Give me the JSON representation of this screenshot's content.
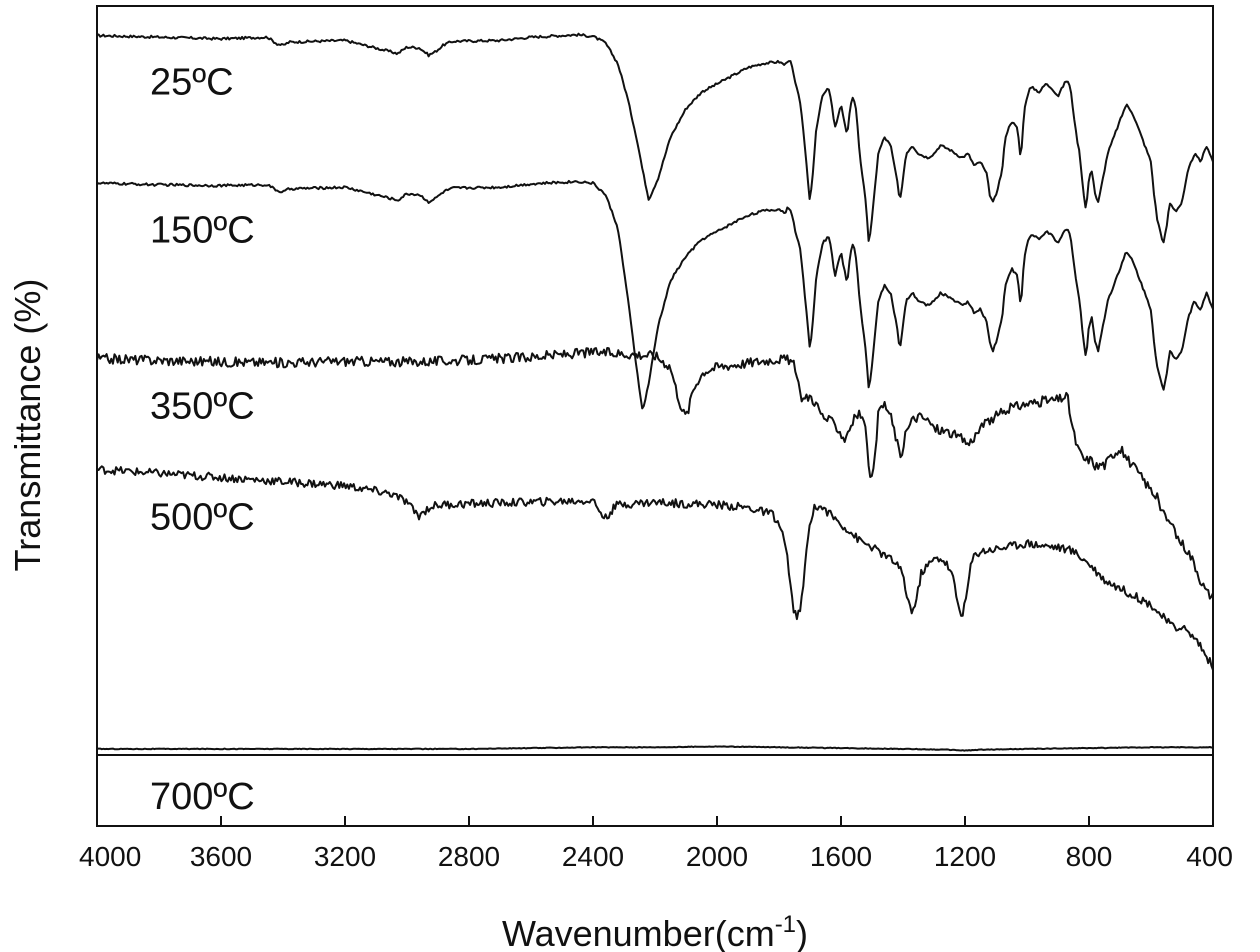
{
  "chart_data": {
    "type": "line",
    "title": "",
    "xlabel": "Wavenumber(cm",
    "xlabel_sup": "-1",
    "xlabel_close": ")",
    "ylabel": "Transmittance (%)",
    "xlim": [
      4000,
      400
    ],
    "x_reversed": true,
    "x_ticks": [
      4000,
      3600,
      3200,
      2800,
      2400,
      2000,
      1600,
      1200,
      800,
      400
    ],
    "x_tick_labels": [
      "4000",
      "3600",
      "3200",
      "2800",
      "2400",
      "2000",
      "1600",
      "1200",
      "800",
      "400"
    ],
    "ylim": [
      0,
      1
    ],
    "y_ticks_shown": false,
    "grid": false,
    "legend": "none",
    "series": [
      {
        "name": "25ºC",
        "baseline": 0.965,
        "noise": 0.0015,
        "x": [
          4000,
          3800,
          3600,
          3450,
          3420,
          3400,
          3380,
          3200,
          3060,
          3030,
          3000,
          2960,
          2930,
          2910,
          2880,
          2850,
          2700,
          2600,
          2450,
          2400,
          2360,
          2320,
          2290,
          2260,
          2240,
          2220,
          2190,
          2150,
          2100,
          2050,
          2000,
          1950,
          1900,
          1850,
          1800,
          1780,
          1770,
          1760,
          1750,
          1730,
          1715,
          1700,
          1690,
          1680,
          1660,
          1640,
          1630,
          1620,
          1610,
          1600,
          1590,
          1580,
          1570,
          1560,
          1550,
          1540,
          1520,
          1510,
          1500,
          1490,
          1480,
          1460,
          1440,
          1420,
          1410,
          1400,
          1390,
          1370,
          1350,
          1320,
          1300,
          1280,
          1250,
          1230,
          1210,
          1190,
          1170,
          1150,
          1130,
          1120,
          1110,
          1100,
          1090,
          1080,
          1070,
          1050,
          1030,
          1020,
          1010,
          1000,
          990,
          980,
          960,
          940,
          920,
          900,
          880,
          870,
          860,
          850,
          840,
          830,
          820,
          810,
          800,
          790,
          780,
          770,
          760,
          750,
          740,
          720,
          700,
          680,
          660,
          640,
          620,
          600,
          590,
          580,
          560,
          550,
          540,
          520,
          500,
          490,
          480,
          460,
          440,
          420,
          400
        ],
        "y": [
          0.964,
          0.962,
          0.96,
          0.962,
          0.954,
          0.952,
          0.956,
          0.958,
          0.945,
          0.942,
          0.95,
          0.949,
          0.94,
          0.944,
          0.953,
          0.957,
          0.958,
          0.962,
          0.965,
          0.963,
          0.955,
          0.93,
          0.89,
          0.84,
          0.8,
          0.764,
          0.79,
          0.84,
          0.875,
          0.895,
          0.905,
          0.915,
          0.925,
          0.93,
          0.932,
          0.928,
          0.935,
          0.93,
          0.91,
          0.88,
          0.82,
          0.76,
          0.8,
          0.85,
          0.89,
          0.9,
          0.88,
          0.85,
          0.865,
          0.88,
          0.86,
          0.84,
          0.88,
          0.89,
          0.87,
          0.82,
          0.76,
          0.71,
          0.74,
          0.78,
          0.82,
          0.84,
          0.83,
          0.79,
          0.76,
          0.79,
          0.82,
          0.83,
          0.82,
          0.815,
          0.82,
          0.83,
          0.825,
          0.82,
          0.815,
          0.82,
          0.805,
          0.81,
          0.795,
          0.77,
          0.76,
          0.77,
          0.785,
          0.8,
          0.84,
          0.86,
          0.85,
          0.81,
          0.87,
          0.89,
          0.9,
          0.9,
          0.895,
          0.905,
          0.9,
          0.89,
          0.905,
          0.91,
          0.9,
          0.87,
          0.84,
          0.82,
          0.78,
          0.75,
          0.79,
          0.8,
          0.77,
          0.76,
          0.78,
          0.8,
          0.82,
          0.84,
          0.86,
          0.88,
          0.87,
          0.85,
          0.83,
          0.81,
          0.77,
          0.74,
          0.71,
          0.73,
          0.76,
          0.75,
          0.76,
          0.78,
          0.8,
          0.82,
          0.81,
          0.83,
          0.81
        ]
      },
      {
        "name": "150ºC",
        "baseline": 0.785,
        "noise": 0.0015,
        "x": [
          4000,
          3800,
          3600,
          3450,
          3420,
          3400,
          3380,
          3200,
          3060,
          3030,
          3000,
          2960,
          2930,
          2910,
          2880,
          2850,
          2700,
          2600,
          2450,
          2400,
          2360,
          2320,
          2290,
          2260,
          2240,
          2220,
          2190,
          2150,
          2100,
          2050,
          2000,
          1950,
          1900,
          1850,
          1800,
          1780,
          1770,
          1760,
          1750,
          1730,
          1715,
          1700,
          1690,
          1680,
          1660,
          1640,
          1630,
          1620,
          1610,
          1600,
          1590,
          1580,
          1570,
          1560,
          1550,
          1540,
          1520,
          1510,
          1500,
          1490,
          1480,
          1460,
          1440,
          1420,
          1410,
          1400,
          1390,
          1370,
          1350,
          1320,
          1300,
          1280,
          1250,
          1230,
          1210,
          1190,
          1170,
          1150,
          1130,
          1120,
          1110,
          1100,
          1090,
          1080,
          1070,
          1050,
          1030,
          1020,
          1010,
          1000,
          990,
          980,
          960,
          940,
          920,
          900,
          880,
          870,
          860,
          850,
          840,
          830,
          820,
          810,
          800,
          790,
          780,
          770,
          760,
          750,
          740,
          720,
          700,
          680,
          660,
          640,
          620,
          600,
          590,
          580,
          560,
          550,
          540,
          520,
          500,
          490,
          480,
          460,
          440,
          420,
          400
        ],
        "y": [
          0.784,
          0.782,
          0.781,
          0.782,
          0.775,
          0.773,
          0.777,
          0.779,
          0.766,
          0.763,
          0.771,
          0.77,
          0.761,
          0.765,
          0.774,
          0.778,
          0.779,
          0.783,
          0.786,
          0.784,
          0.77,
          0.73,
          0.65,
          0.56,
          0.505,
          0.54,
          0.61,
          0.665,
          0.695,
          0.715,
          0.725,
          0.735,
          0.745,
          0.75,
          0.752,
          0.748,
          0.755,
          0.75,
          0.73,
          0.7,
          0.64,
          0.58,
          0.62,
          0.67,
          0.71,
          0.72,
          0.7,
          0.67,
          0.685,
          0.7,
          0.68,
          0.66,
          0.7,
          0.71,
          0.69,
          0.64,
          0.58,
          0.53,
          0.56,
          0.6,
          0.64,
          0.66,
          0.65,
          0.61,
          0.58,
          0.61,
          0.64,
          0.65,
          0.64,
          0.635,
          0.64,
          0.65,
          0.645,
          0.64,
          0.635,
          0.64,
          0.625,
          0.63,
          0.615,
          0.59,
          0.58,
          0.59,
          0.605,
          0.62,
          0.66,
          0.68,
          0.67,
          0.63,
          0.69,
          0.71,
          0.72,
          0.72,
          0.715,
          0.725,
          0.72,
          0.71,
          0.725,
          0.73,
          0.72,
          0.69,
          0.66,
          0.64,
          0.6,
          0.57,
          0.61,
          0.62,
          0.59,
          0.58,
          0.6,
          0.62,
          0.64,
          0.66,
          0.68,
          0.7,
          0.69,
          0.67,
          0.65,
          0.63,
          0.59,
          0.56,
          0.53,
          0.55,
          0.58,
          0.57,
          0.58,
          0.6,
          0.62,
          0.64,
          0.63,
          0.65,
          0.63
        ]
      },
      {
        "name": "350ºC",
        "baseline": 0.57,
        "noise": 0.006,
        "x": [
          4000,
          3800,
          3600,
          3400,
          3200,
          3000,
          2800,
          2600,
          2400,
          2300,
          2200,
          2150,
          2130,
          2110,
          2100,
          2090,
          2080,
          2060,
          2040,
          2000,
          1900,
          1800,
          1760,
          1750,
          1740,
          1730,
          1720,
          1700,
          1680,
          1660,
          1640,
          1620,
          1600,
          1590,
          1580,
          1560,
          1540,
          1520,
          1510,
          1500,
          1490,
          1480,
          1460,
          1440,
          1420,
          1410,
          1400,
          1390,
          1370,
          1350,
          1320,
          1300,
          1250,
          1200,
          1190,
          1180,
          1150,
          1100,
          1050,
          1000,
          950,
          900,
          870,
          860,
          850,
          840,
          830,
          820,
          810,
          800,
          790,
          780,
          770,
          760,
          750,
          740,
          720,
          700,
          680,
          660,
          640,
          620,
          600,
          580,
          560,
          540,
          520,
          500,
          480,
          460,
          440,
          420,
          400
        ],
        "y": [
          0.57,
          0.568,
          0.566,
          0.565,
          0.567,
          0.566,
          0.568,
          0.572,
          0.578,
          0.576,
          0.574,
          0.56,
          0.53,
          0.505,
          0.5,
          0.51,
          0.53,
          0.545,
          0.555,
          0.56,
          0.565,
          0.57,
          0.568,
          0.56,
          0.54,
          0.525,
          0.52,
          0.525,
          0.515,
          0.5,
          0.495,
          0.49,
          0.48,
          0.47,
          0.48,
          0.495,
          0.505,
          0.48,
          0.44,
          0.42,
          0.45,
          0.5,
          0.515,
          0.5,
          0.47,
          0.45,
          0.46,
          0.48,
          0.495,
          0.5,
          0.495,
          0.485,
          0.48,
          0.47,
          0.465,
          0.47,
          0.485,
          0.5,
          0.51,
          0.515,
          0.518,
          0.52,
          0.525,
          0.5,
          0.48,
          0.465,
          0.455,
          0.45,
          0.445,
          0.448,
          0.445,
          0.44,
          0.438,
          0.442,
          0.44,
          0.445,
          0.455,
          0.46,
          0.45,
          0.44,
          0.43,
          0.42,
          0.41,
          0.4,
          0.38,
          0.37,
          0.355,
          0.345,
          0.335,
          0.32,
          0.3,
          0.285,
          0.28
        ]
      },
      {
        "name": "500ºC",
        "baseline": 0.435,
        "noise": 0.005,
        "x": [
          4000,
          3800,
          3600,
          3400,
          3200,
          3050,
          3000,
          2980,
          2960,
          2940,
          2920,
          2880,
          2800,
          2600,
          2400,
          2380,
          2360,
          2340,
          2320,
          2200,
          2100,
          2000,
          1900,
          1820,
          1790,
          1770,
          1760,
          1750,
          1740,
          1730,
          1720,
          1710,
          1700,
          1690,
          1680,
          1660,
          1640,
          1620,
          1600,
          1580,
          1560,
          1540,
          1500,
          1480,
          1460,
          1420,
          1400,
          1390,
          1380,
          1370,
          1360,
          1350,
          1340,
          1300,
          1280,
          1260,
          1240,
          1230,
          1220,
          1210,
          1200,
          1190,
          1180,
          1170,
          1150,
          1100,
          1000,
          950,
          900,
          850,
          800,
          750,
          700,
          650,
          600,
          550,
          520,
          500,
          480,
          460,
          440,
          420,
          400
        ],
        "y": [
          0.435,
          0.43,
          0.425,
          0.42,
          0.415,
          0.405,
          0.395,
          0.385,
          0.378,
          0.385,
          0.39,
          0.392,
          0.393,
          0.395,
          0.397,
          0.385,
          0.375,
          0.385,
          0.392,
          0.395,
          0.393,
          0.392,
          0.388,
          0.38,
          0.36,
          0.32,
          0.28,
          0.26,
          0.255,
          0.265,
          0.3,
          0.34,
          0.37,
          0.385,
          0.39,
          0.388,
          0.382,
          0.375,
          0.368,
          0.362,
          0.355,
          0.348,
          0.34,
          0.335,
          0.33,
          0.32,
          0.305,
          0.285,
          0.27,
          0.262,
          0.27,
          0.29,
          0.31,
          0.325,
          0.327,
          0.32,
          0.305,
          0.285,
          0.265,
          0.258,
          0.27,
          0.295,
          0.32,
          0.33,
          0.335,
          0.338,
          0.345,
          0.342,
          0.34,
          0.335,
          0.32,
          0.3,
          0.29,
          0.28,
          0.27,
          0.25,
          0.24,
          0.245,
          0.235,
          0.23,
          0.22,
          0.205,
          0.195
        ]
      },
      {
        "name": "700ºC",
        "baseline": 0.094,
        "noise": 0.0004,
        "x": [
          4000,
          3600,
          3200,
          2800,
          2600,
          2400,
          2200,
          2000,
          1800,
          1600,
          1400,
          1250,
          1200,
          1150,
          1000,
          800,
          600,
          400
        ],
        "y": [
          0.094,
          0.094,
          0.094,
          0.094,
          0.095,
          0.096,
          0.096,
          0.097,
          0.096,
          0.095,
          0.094,
          0.093,
          0.092,
          0.093,
          0.094,
          0.095,
          0.096,
          0.096
        ]
      }
    ]
  }
}
